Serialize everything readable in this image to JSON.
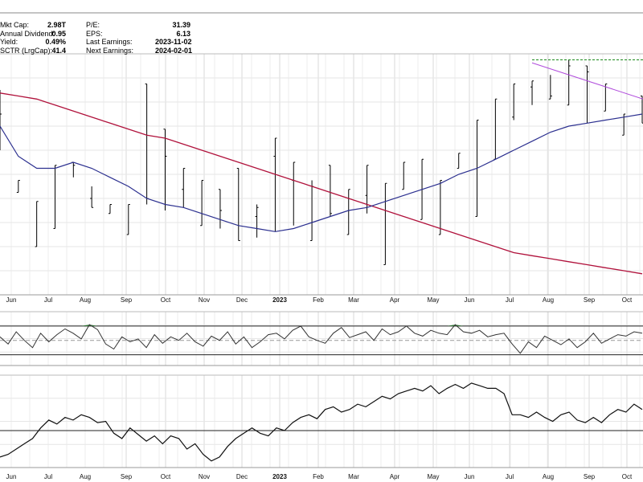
{
  "stats_left": [
    {
      "label": "Mkt Cap:",
      "value": "2.98T"
    },
    {
      "label": "Annual Dividend:",
      "value": "0.95"
    },
    {
      "label": "Yield:",
      "value": "0.49%"
    },
    {
      "label": "SCTR (LrgCap):",
      "value": "41.4"
    }
  ],
  "stats_right": [
    {
      "label": "P/E:",
      "value": "31.39"
    },
    {
      "label": "EPS:",
      "value": "6.13"
    },
    {
      "label": "Last Earnings:",
      "value": "2023-11-02"
    },
    {
      "label": "Next Earnings:",
      "value": "2024-02-01"
    }
  ],
  "colors": {
    "price": "#000000",
    "ma_fast": "#2b2f8f",
    "ma_slow": "#b0113b",
    "trendline": "#b04cdc",
    "resistance": "#1a8a1a",
    "overbought_fill": "#2e7d32",
    "grid": "#d8d8d8",
    "panel_line": "#000000"
  },
  "chart_data": [
    {
      "type": "line",
      "title": "",
      "note": "Daily price bars with two moving averages, a declining trendline and a horizontal resistance line",
      "x_tick_labels": [
        "Jun",
        "Jul",
        "Aug",
        "Sep",
        "Oct",
        "Nov",
        "Dec",
        "2023",
        "Feb",
        "Mar",
        "Apr",
        "May",
        "Jun",
        "Jul",
        "Aug",
        "Sep",
        "Oct"
      ],
      "x": [
        0,
        1,
        2,
        3,
        4,
        5,
        6,
        7,
        8,
        9,
        10,
        11,
        12,
        13,
        14,
        15,
        16,
        17,
        18,
        19,
        20,
        21,
        22,
        23,
        24,
        25,
        26,
        27,
        28,
        29,
        30,
        31,
        32,
        33,
        34,
        35
      ],
      "series": [
        {
          "values": [
            288,
            254,
            236,
            242,
            264,
            252,
            247,
            240,
            290,
            275,
            255,
            243,
            255,
            262,
            246,
            266,
            258,
            238,
            263,
            240,
            253,
            230,
            255,
            245,
            240,
            262,
            246,
            265,
            279,
            289,
            285,
            283,
            296,
            281,
            273,
            286
          ]
        },
        {
          "values": [
            280,
            258,
            251,
            263,
            263,
            249,
            250,
            250,
            252,
            266,
            262,
            258,
            248,
            238,
            249,
            272,
            264,
            256,
            247,
            255,
            263,
            257,
            264,
            265,
            258,
            267,
            278,
            285,
            290,
            291,
            286,
            296,
            294,
            290,
            280,
            277
          ]
        },
        {
          "values": [
            270,
            256,
            248,
            260,
            262,
            256,
            250,
            248,
            251,
            249,
            247,
            244,
            243,
            244,
            250,
            254,
            259,
            258,
            254,
            252,
            255,
            250,
            252,
            255,
            250,
            258,
            265,
            270,
            278,
            288,
            293,
            298,
            296,
            290,
            278,
            285
          ]
        },
        {
          "values": [
            268,
            262,
            258,
            258,
            259,
            262,
            260,
            254,
            250,
            248,
            249,
            245,
            242,
            240,
            239,
            241,
            243,
            246,
            246,
            244,
            247,
            249,
            255,
            258,
            260,
            262,
            267,
            271,
            278,
            283,
            286,
            283,
            277,
            283,
            276,
            278
          ]
        },
        {
          "values": [
            276,
            266,
            262,
            262,
            264,
            262,
            259,
            256,
            252,
            250,
            249,
            247,
            245,
            243,
            242,
            241,
            242,
            244,
            246,
            248,
            249,
            251,
            253,
            255,
            257,
            260,
            262,
            265,
            268,
            271,
            274,
            276,
            277,
            278,
            279,
            280
          ]
        },
        {
          "values": [
            287,
            286,
            285,
            283,
            281,
            279,
            277,
            275,
            273,
            272,
            270,
            268,
            266,
            264,
            262,
            260,
            258,
            256,
            254,
            252,
            250,
            248,
            246,
            244,
            242,
            240,
            238,
            236,
            234,
            233,
            232,
            231,
            230,
            229,
            228,
            227
          ]
        }
      ]
    },
    {
      "type": "line",
      "title": "",
      "note": "Oscillator panel; 30/70 bands with overbought shading",
      "x": [
        0,
        1,
        2,
        3,
        4,
        5,
        6,
        7,
        8,
        9,
        10,
        11,
        12,
        13,
        14,
        15,
        16,
        17,
        18,
        19,
        20,
        21,
        22,
        23,
        24,
        25,
        26,
        27,
        28,
        29,
        30,
        31,
        32,
        33,
        34,
        35,
        36,
        37,
        38,
        39,
        40,
        41,
        42,
        43,
        44,
        45,
        46,
        47,
        48,
        49,
        50,
        51,
        52,
        53,
        54,
        55,
        56,
        57,
        58,
        59,
        60,
        61,
        62,
        63,
        64,
        65,
        66,
        67,
        68,
        69,
        70,
        71,
        72,
        73,
        74,
        75,
        76,
        77,
        78,
        79
      ],
      "bands": [
        30,
        50,
        70
      ],
      "series": [
        {
          "values": [
            55,
            45,
            62,
            50,
            40,
            60,
            48,
            58,
            66,
            60,
            52,
            72,
            65,
            45,
            38,
            55,
            48,
            52,
            40,
            58,
            46,
            55,
            50,
            60,
            48,
            42,
            56,
            50,
            62,
            45,
            55,
            40,
            48,
            58,
            60,
            52,
            64,
            70,
            55,
            50,
            46,
            60,
            68,
            54,
            58,
            62,
            50,
            66,
            58,
            62,
            70,
            60,
            56,
            64,
            60,
            58,
            72,
            62,
            60,
            64,
            55,
            58,
            60,
            45,
            32,
            48,
            40,
            56,
            50,
            44,
            52,
            40,
            48,
            60,
            46,
            52,
            58,
            56,
            62,
            60
          ]
        }
      ]
    },
    {
      "type": "line",
      "title": "",
      "note": "Lower panel indicator line",
      "x": [
        0,
        1,
        2,
        3,
        4,
        5,
        6,
        7,
        8,
        9,
        10,
        11,
        12,
        13,
        14,
        15,
        16,
        17,
        18,
        19,
        20,
        21,
        22,
        23,
        24,
        25,
        26,
        27,
        28,
        29,
        30,
        31,
        32,
        33,
        34,
        35,
        36,
        37,
        38,
        39,
        40,
        41,
        42,
        43,
        44,
        45,
        46,
        47,
        48,
        49,
        50,
        51,
        52,
        53,
        54,
        55,
        56,
        57,
        58,
        59,
        60,
        61,
        62,
        63,
        64,
        65,
        66,
        67,
        68,
        69,
        70,
        71,
        72,
        73,
        74,
        75,
        76,
        77,
        78,
        79
      ],
      "series": [
        {
          "values": [
            8,
            10,
            14,
            18,
            22,
            30,
            36,
            33,
            38,
            36,
            40,
            38,
            34,
            35,
            26,
            22,
            30,
            25,
            20,
            24,
            18,
            24,
            22,
            14,
            18,
            10,
            5,
            8,
            16,
            22,
            26,
            30,
            26,
            24,
            30,
            28,
            34,
            38,
            40,
            37,
            44,
            46,
            42,
            44,
            48,
            46,
            50,
            54,
            52,
            56,
            58,
            60,
            58,
            62,
            56,
            60,
            63,
            60,
            64,
            62,
            60,
            60,
            56,
            40,
            40,
            38,
            42,
            38,
            35,
            40,
            42,
            36,
            34,
            38,
            34,
            40,
            44,
            42,
            48,
            44
          ]
        }
      ]
    }
  ]
}
